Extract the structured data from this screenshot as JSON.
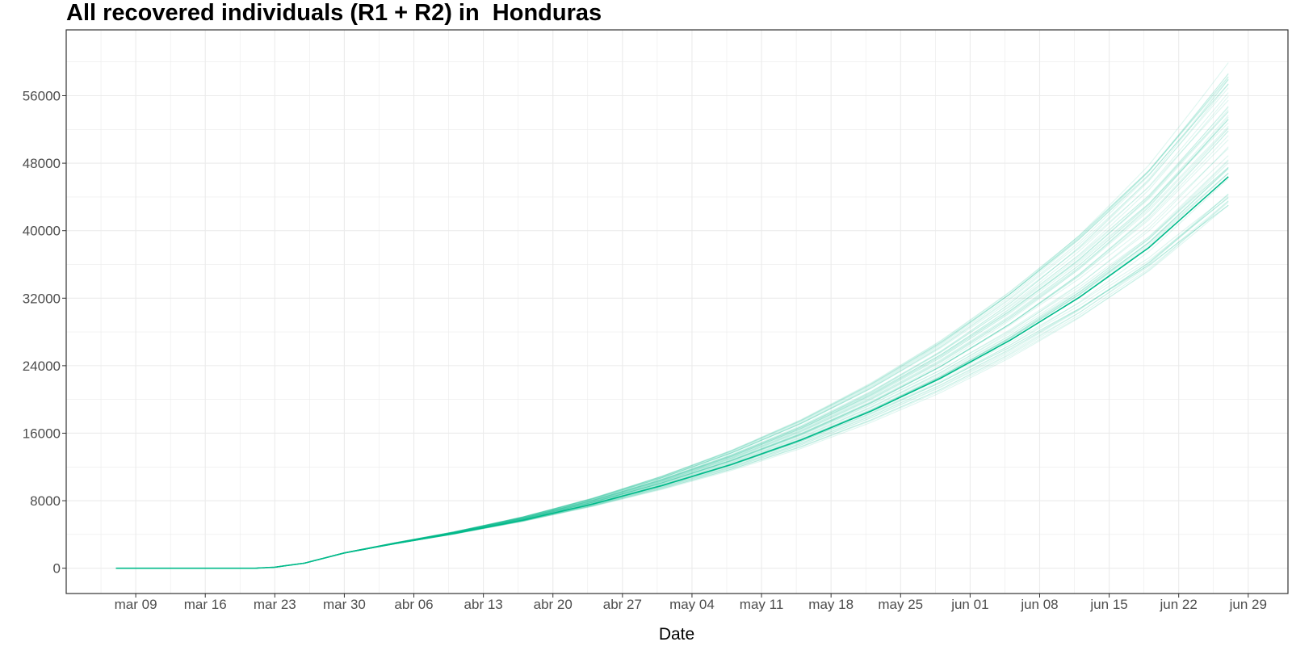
{
  "chart_data": {
    "type": "line",
    "title": "All recovered individuals (R1 + R2) in  Honduras",
    "xlabel": "Date",
    "ylabel": "",
    "x_start": "2020-03-07",
    "x_end": "2020-06-27",
    "xlim": [
      "2020-03-02",
      "2020-07-03"
    ],
    "ylim": [
      -3000,
      63800
    ],
    "x_ticks": [
      {
        "date": "2020-03-09",
        "label": "mar 09"
      },
      {
        "date": "2020-03-16",
        "label": "mar 16"
      },
      {
        "date": "2020-03-23",
        "label": "mar 23"
      },
      {
        "date": "2020-03-30",
        "label": "mar 30"
      },
      {
        "date": "2020-04-06",
        "label": "abr 06"
      },
      {
        "date": "2020-04-13",
        "label": "abr 13"
      },
      {
        "date": "2020-04-20",
        "label": "abr 20"
      },
      {
        "date": "2020-04-27",
        "label": "abr 27"
      },
      {
        "date": "2020-05-04",
        "label": "may 04"
      },
      {
        "date": "2020-05-11",
        "label": "may 11"
      },
      {
        "date": "2020-05-18",
        "label": "may 18"
      },
      {
        "date": "2020-05-25",
        "label": "may 25"
      },
      {
        "date": "2020-06-01",
        "label": "jun 01"
      },
      {
        "date": "2020-06-08",
        "label": "jun 08"
      },
      {
        "date": "2020-06-15",
        "label": "jun 15"
      },
      {
        "date": "2020-06-22",
        "label": "jun 22"
      },
      {
        "date": "2020-06-29",
        "label": "jun 29"
      }
    ],
    "y_ticks": [
      0,
      8000,
      16000,
      24000,
      32000,
      40000,
      48000,
      56000
    ],
    "y_tick_labels": [
      "0",
      "8000",
      "16000",
      "24000",
      "32000",
      "40000",
      "48000",
      "56000"
    ],
    "grid": true,
    "legend": "none",
    "colors": {
      "series": "#00BA8A",
      "grid": "#EBEBEB",
      "border": "#333333"
    },
    "central_series": {
      "dates": [
        "2020-03-07",
        "2020-03-21",
        "2020-03-23",
        "2020-03-26",
        "2020-03-30",
        "2020-04-04",
        "2020-04-10",
        "2020-04-17",
        "2020-04-24",
        "2020-05-01",
        "2020-05-08",
        "2020-05-15",
        "2020-05-22",
        "2020-05-29",
        "2020-06-05",
        "2020-06-12",
        "2020-06-19",
        "2020-06-27"
      ],
      "values": [
        0,
        0,
        120,
        600,
        1800,
        2900,
        4100,
        5700,
        7600,
        9800,
        12300,
        15200,
        18600,
        22500,
        27000,
        32100,
        38000,
        46400
      ]
    },
    "ensemble": {
      "count": 60,
      "final_value_range": [
        43000,
        60000
      ],
      "opacity": 0.13
    }
  }
}
